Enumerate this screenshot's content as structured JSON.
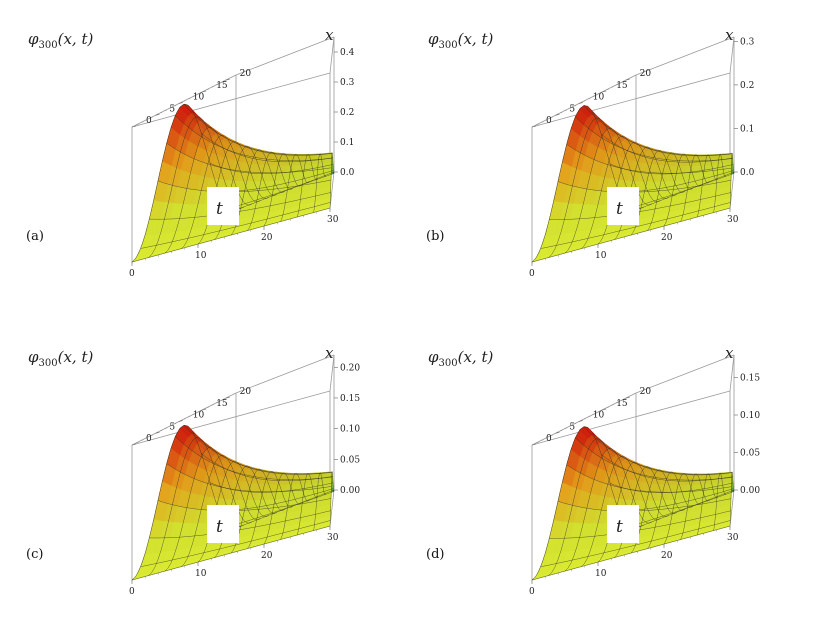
{
  "figure": {
    "panels": [
      "a",
      "b",
      "c",
      "d"
    ]
  },
  "chart_data": [
    {
      "type": "surface3d",
      "panel_label": "(a)",
      "zlabel_main": "φ",
      "zlabel_sub": "300",
      "zlabel_args": "(x, t)",
      "xlabel": "x",
      "tlabel": "t",
      "x_ticks": [
        "0",
        "5",
        "10",
        "15",
        "20"
      ],
      "t_ticks": [
        "0",
        "10",
        "20",
        "30"
      ],
      "z_ticks": [
        "0.0",
        "0.1",
        "0.2",
        "0.3",
        "0.4"
      ],
      "zlim": [
        0,
        0.45
      ],
      "peak": 0.44,
      "colors": {
        "high": "#e8120c",
        "mid": "#f6a81c",
        "low": "#dcec32",
        "far": "#3cd44a"
      }
    },
    {
      "type": "surface3d",
      "panel_label": "(b)",
      "zlabel_main": "φ",
      "zlabel_sub": "300",
      "zlabel_args": "(x, t)",
      "xlabel": "x",
      "tlabel": "t",
      "x_ticks": [
        "0",
        "5",
        "10",
        "15",
        "20"
      ],
      "t_ticks": [
        "0",
        "10",
        "20",
        "30"
      ],
      "z_ticks": [
        "0.0",
        "0.1",
        "0.2",
        "0.3"
      ],
      "zlim": [
        0,
        0.31
      ],
      "peak": 0.3,
      "colors": {
        "high": "#e8120c",
        "mid": "#f6a81c",
        "low": "#dcec32",
        "far": "#3cd44a"
      }
    },
    {
      "type": "surface3d",
      "panel_label": "(c)",
      "zlabel_main": "φ",
      "zlabel_sub": "300",
      "zlabel_args": "(x, t)",
      "xlabel": "x",
      "tlabel": "t",
      "x_ticks": [
        "0",
        "5",
        "10",
        "15",
        "20"
      ],
      "t_ticks": [
        "0",
        "10",
        "20",
        "30"
      ],
      "z_ticks": [
        "0.00",
        "0.05",
        "0.10",
        "0.15",
        "0.20"
      ],
      "zlim": [
        0,
        0.22
      ],
      "peak": 0.21,
      "colors": {
        "high": "#e8120c",
        "mid": "#f6a81c",
        "low": "#dcec32",
        "far": "#3cd44a"
      }
    },
    {
      "type": "surface3d",
      "panel_label": "(d)",
      "zlabel_main": "φ",
      "zlabel_sub": "300",
      "zlabel_args": "(x, t)",
      "xlabel": "x",
      "tlabel": "t",
      "x_ticks": [
        "0",
        "5",
        "10",
        "15",
        "20"
      ],
      "t_ticks": [
        "0",
        "10",
        "20",
        "30"
      ],
      "z_ticks": [
        "0.00",
        "0.05",
        "0.10",
        "0.15"
      ],
      "zlim": [
        0,
        0.18
      ],
      "peak": 0.17,
      "colors": {
        "high": "#e8120c",
        "mid": "#f6a81c",
        "low": "#dcec32",
        "far": "#3cd44a"
      }
    }
  ]
}
